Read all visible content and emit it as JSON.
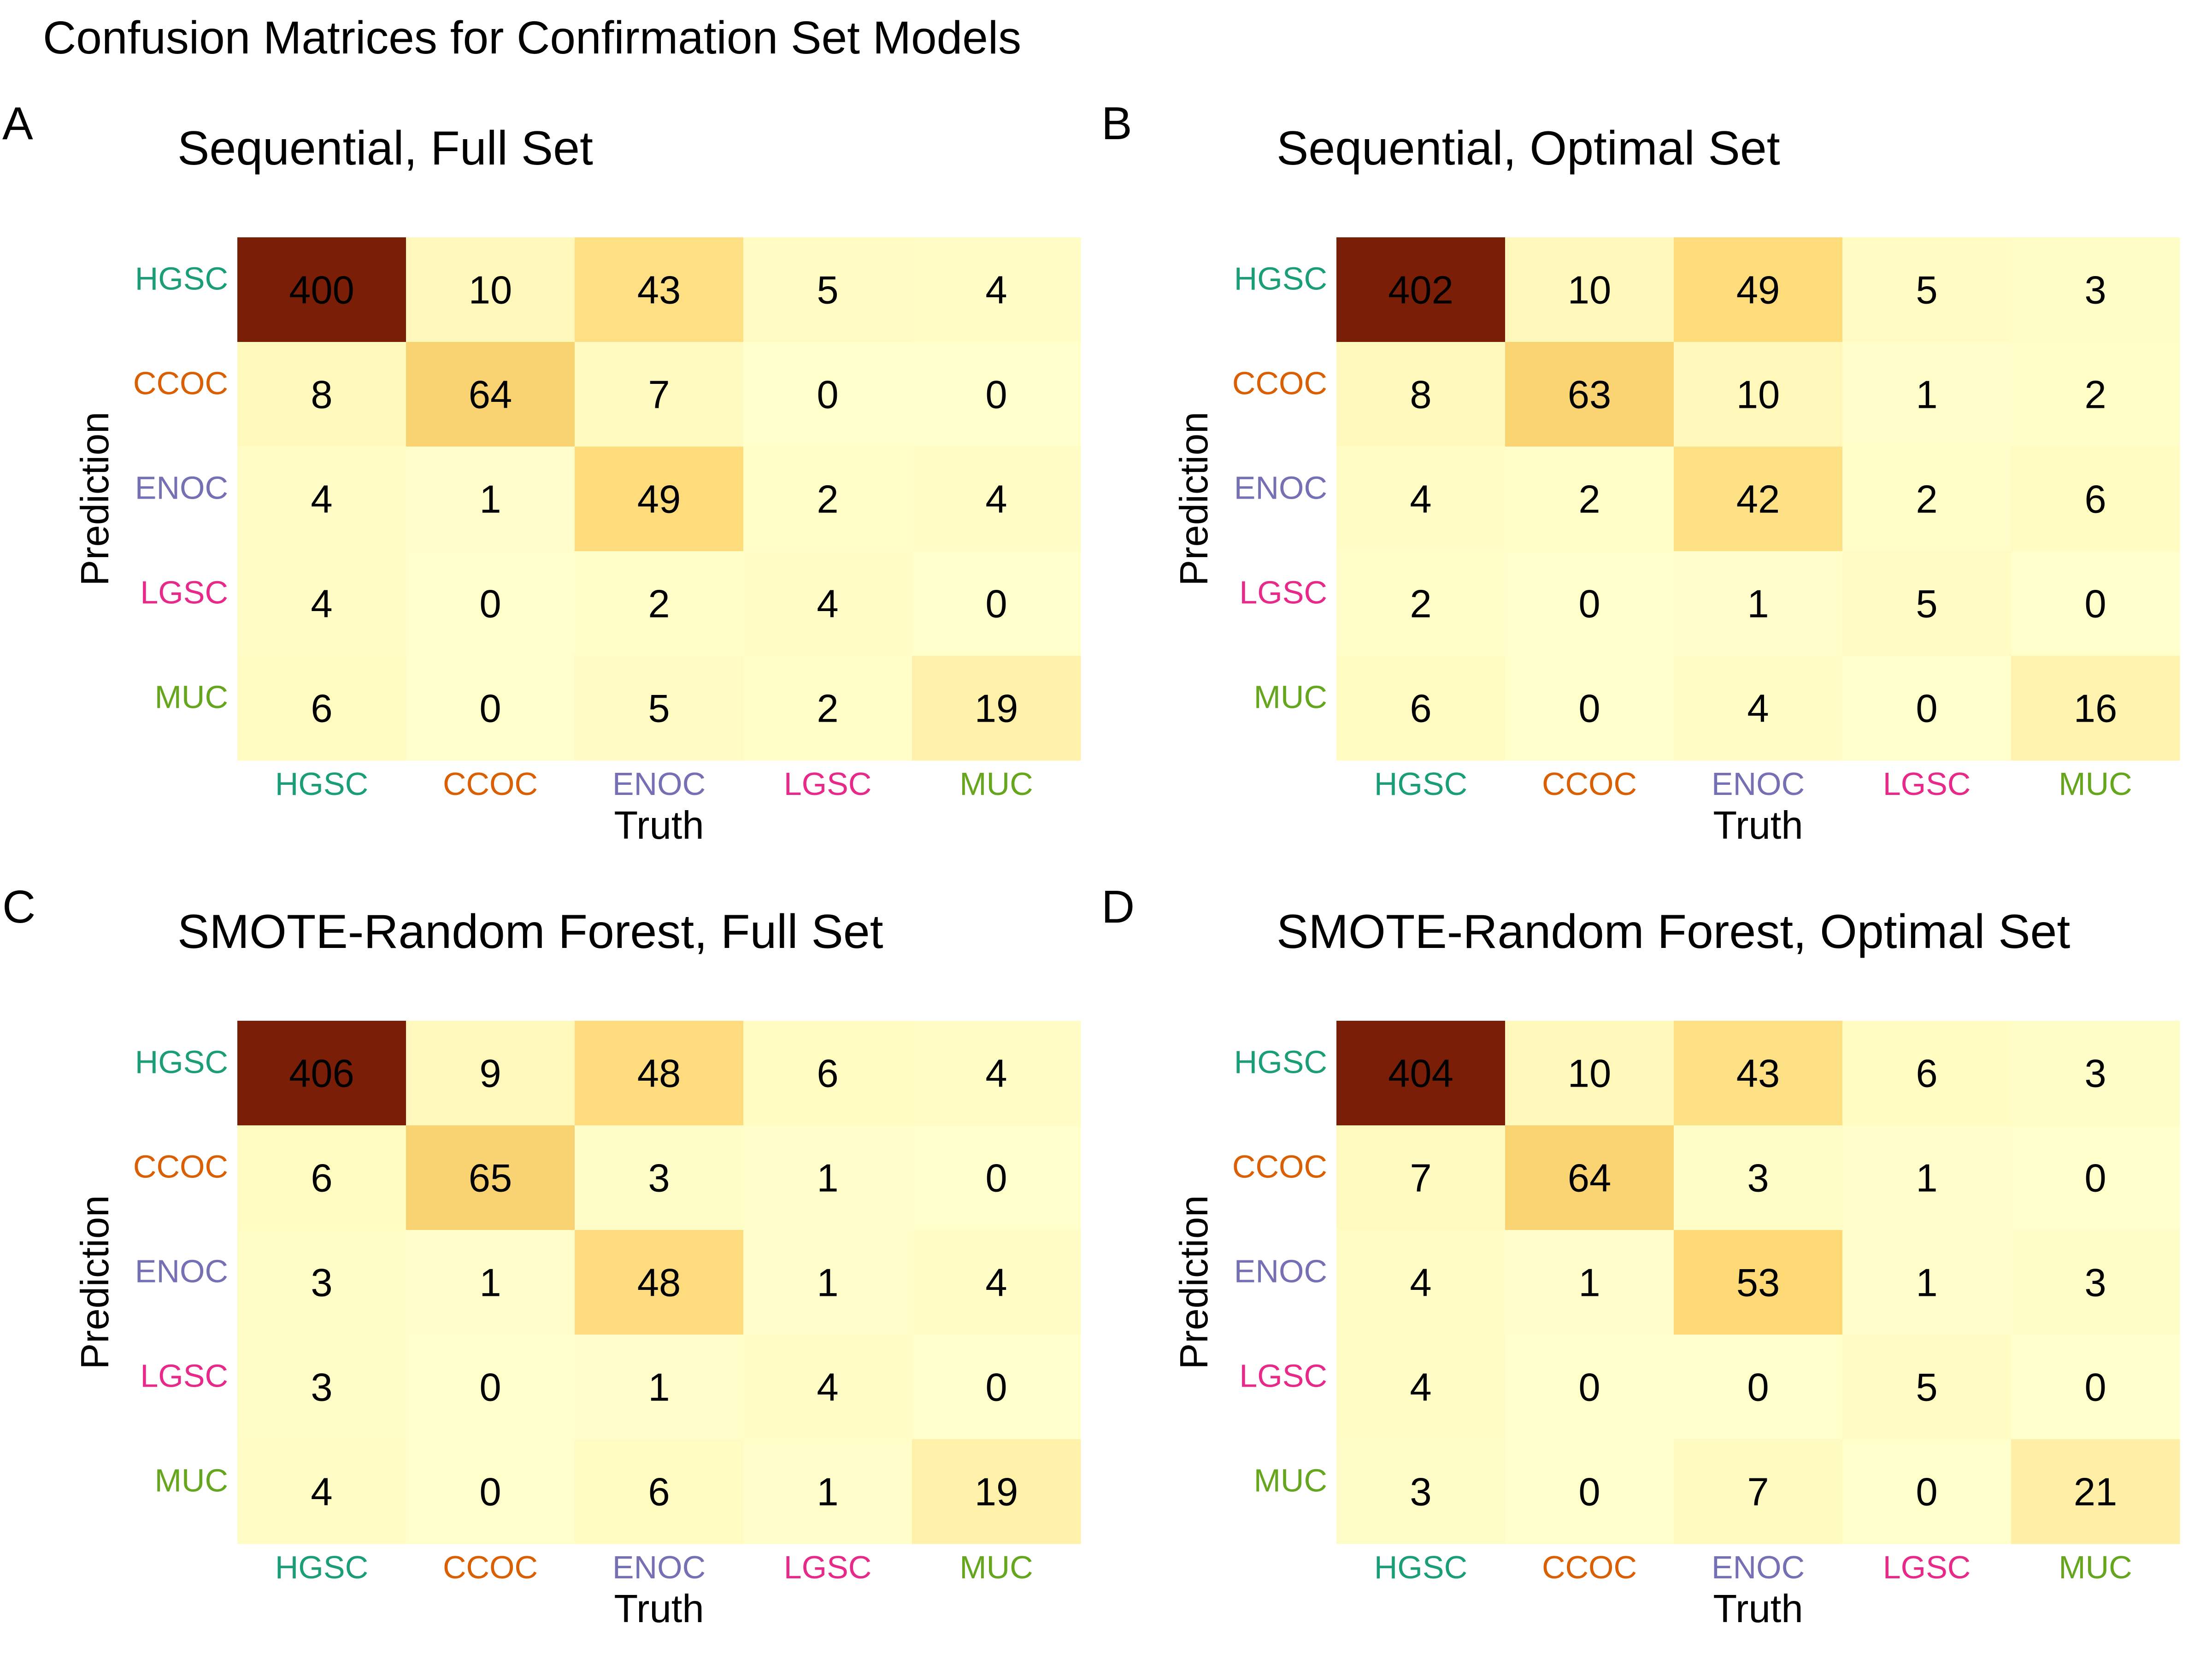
{
  "title": "Confusion Matrices for Confirmation Set Models",
  "class_colors": {
    "HGSC": "#1b9e77",
    "CCOC": "#d95f02",
    "ENOC": "#7570b3",
    "LGSC": "#e7298a",
    "MUC": "#66a61e"
  },
  "color_scale": {
    "low": "#ffffcc",
    "mid1": "#ffeda0",
    "mid2": "#fed976",
    "high": "#7a1e08"
  },
  "chart_data": [
    {
      "type": "heatmap",
      "panel": "A",
      "title": "Sequential, Full Set",
      "xlabel": "Truth",
      "ylabel": "Prediction",
      "x_categories": [
        "HGSC",
        "CCOC",
        "ENOC",
        "LGSC",
        "MUC"
      ],
      "y_categories": [
        "HGSC",
        "CCOC",
        "ENOC",
        "LGSC",
        "MUC"
      ],
      "values": [
        [
          400,
          10,
          43,
          5,
          4
        ],
        [
          8,
          64,
          7,
          0,
          0
        ],
        [
          4,
          1,
          49,
          2,
          4
        ],
        [
          4,
          0,
          2,
          4,
          0
        ],
        [
          6,
          0,
          5,
          2,
          19
        ]
      ]
    },
    {
      "type": "heatmap",
      "panel": "B",
      "title": "Sequential, Optimal Set",
      "xlabel": "Truth",
      "ylabel": "Prediction",
      "x_categories": [
        "HGSC",
        "CCOC",
        "ENOC",
        "LGSC",
        "MUC"
      ],
      "y_categories": [
        "HGSC",
        "CCOC",
        "ENOC",
        "LGSC",
        "MUC"
      ],
      "values": [
        [
          402,
          10,
          49,
          5,
          3
        ],
        [
          8,
          63,
          10,
          1,
          2
        ],
        [
          4,
          2,
          42,
          2,
          6
        ],
        [
          2,
          0,
          1,
          5,
          0
        ],
        [
          6,
          0,
          4,
          0,
          16
        ]
      ]
    },
    {
      "type": "heatmap",
      "panel": "C",
      "title": "SMOTE-Random Forest, Full Set",
      "xlabel": "Truth",
      "ylabel": "Prediction",
      "x_categories": [
        "HGSC",
        "CCOC",
        "ENOC",
        "LGSC",
        "MUC"
      ],
      "y_categories": [
        "HGSC",
        "CCOC",
        "ENOC",
        "LGSC",
        "MUC"
      ],
      "values": [
        [
          406,
          9,
          48,
          6,
          4
        ],
        [
          6,
          65,
          3,
          1,
          0
        ],
        [
          3,
          1,
          48,
          1,
          4
        ],
        [
          3,
          0,
          1,
          4,
          0
        ],
        [
          4,
          0,
          6,
          1,
          19
        ]
      ]
    },
    {
      "type": "heatmap",
      "panel": "D",
      "title": "SMOTE-Random Forest, Optimal Set",
      "xlabel": "Truth",
      "ylabel": "Prediction",
      "x_categories": [
        "HGSC",
        "CCOC",
        "ENOC",
        "LGSC",
        "MUC"
      ],
      "y_categories": [
        "HGSC",
        "CCOC",
        "ENOC",
        "LGSC",
        "MUC"
      ],
      "values": [
        [
          404,
          10,
          43,
          6,
          3
        ],
        [
          7,
          64,
          3,
          1,
          0
        ],
        [
          4,
          1,
          53,
          1,
          3
        ],
        [
          4,
          0,
          0,
          5,
          0
        ],
        [
          3,
          0,
          7,
          0,
          21
        ]
      ]
    }
  ]
}
